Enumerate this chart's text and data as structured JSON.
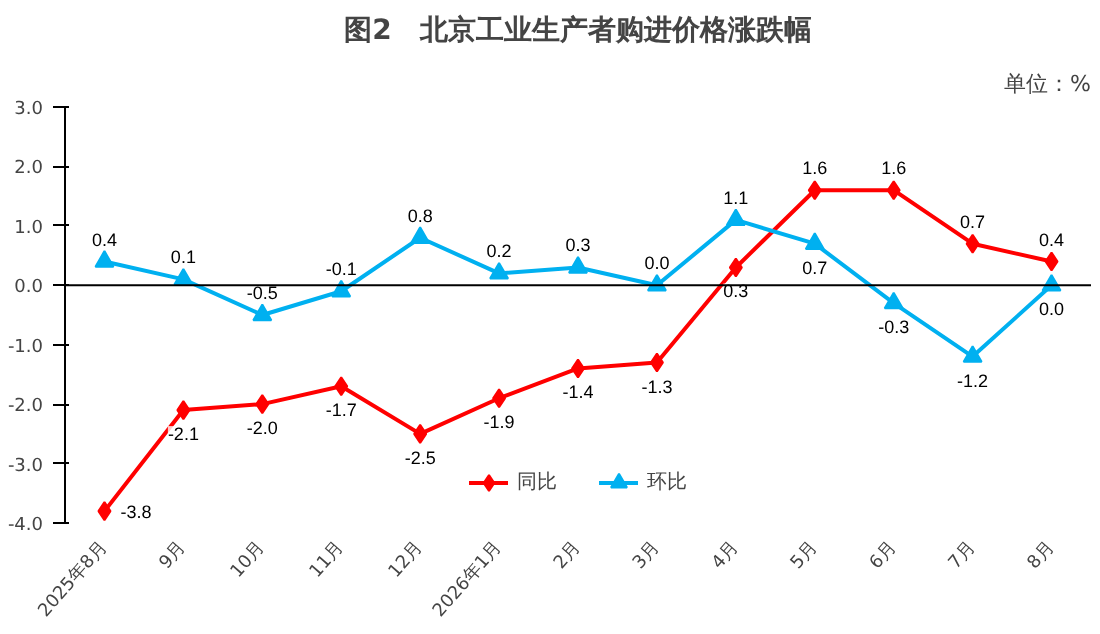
{
  "chart_data": {
    "type": "line",
    "title": "图2　北京工业生产者购进价格涨跌幅",
    "annotations": [
      "单位：%"
    ],
    "categories": [
      "2025年8月",
      "9月",
      "10月",
      "11月",
      "12月",
      "2026年1月",
      "2月",
      "3月",
      "4月",
      "5月",
      "6月",
      "7月",
      "8月"
    ],
    "series": [
      {
        "name": "同比",
        "color": "#ff0000",
        "marker": "diamond",
        "values": [
          -3.8,
          -2.1,
          -2.0,
          -1.7,
          -2.5,
          -1.9,
          -1.4,
          -1.3,
          0.3,
          1.6,
          1.6,
          0.7,
          0.4
        ],
        "value_labels": [
          "-3.8",
          "-2.1",
          "-2.0",
          "-1.7",
          "-2.5",
          "-1.9",
          "-1.4",
          "-1.3",
          "0.3",
          "1.6",
          "1.6",
          "0.7",
          "0.4"
        ]
      },
      {
        "name": "环比",
        "color": "#00b0f0",
        "marker": "triangle",
        "values": [
          0.4,
          0.1,
          -0.5,
          -0.1,
          0.8,
          0.2,
          0.3,
          0.0,
          1.1,
          0.7,
          -0.3,
          -1.2,
          0.0
        ],
        "value_labels": [
          "0.4",
          "0.1",
          "-0.5",
          "-0.1",
          "0.8",
          "0.2",
          "0.3",
          "0.0",
          "1.1",
          "0.7",
          "-0.3",
          "-1.2",
          "0.0"
        ]
      }
    ],
    "ylim": [
      -4.0,
      3.0
    ],
    "yticks": [
      {
        "value": -4,
        "label": "-4.0"
      },
      {
        "value": -3,
        "label": "-3.0"
      },
      {
        "value": -2,
        "label": "-2.0"
      },
      {
        "value": -1,
        "label": "-1.0"
      },
      {
        "value": 0,
        "label": "0.0"
      },
      {
        "value": 1,
        "label": "1.0"
      },
      {
        "value": 2,
        "label": "2.0"
      },
      {
        "value": 3,
        "label": "3.0"
      }
    ],
    "ref_lines": [
      {
        "axis": "y",
        "value": 0,
        "color": "#000000"
      }
    ],
    "grid": false,
    "legend": "bottom",
    "line_style": "solid"
  }
}
